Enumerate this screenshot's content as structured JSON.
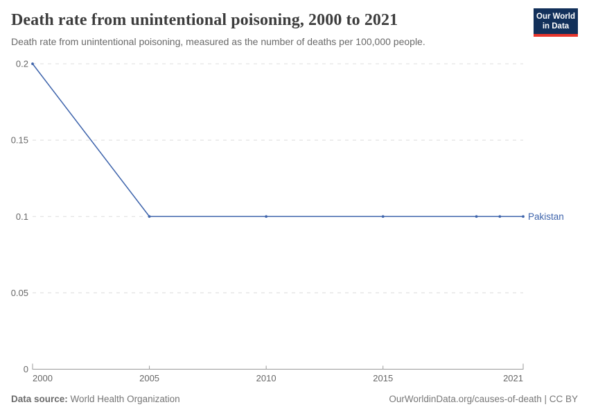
{
  "header": {
    "title": "Death rate from unintentional poisoning, 2000 to 2021",
    "subtitle": "Death rate from unintentional poisoning, measured as the number of deaths per 100,000 people."
  },
  "logo": {
    "line1": "Our World",
    "line2": "in Data",
    "bg_color": "#12305a",
    "accent_color": "#e8362c"
  },
  "chart_data": {
    "type": "line",
    "title": "Death rate from unintentional poisoning, 2000 to 2021",
    "xlabel": "",
    "ylabel": "",
    "xlim": [
      2000,
      2021
    ],
    "ylim": [
      0,
      0.2
    ],
    "xticks": [
      2000,
      2005,
      2010,
      2015,
      2021
    ],
    "yticks": [
      0,
      0.05,
      0.1,
      0.15,
      0.2
    ],
    "ytick_labels": [
      "0",
      "0.05",
      "0.1",
      "0.15",
      "0.2"
    ],
    "grid": true,
    "legend_position": "end-of-line",
    "series": [
      {
        "name": "Pakistan",
        "color": "#3d63ab",
        "x": [
          2000,
          2005,
          2010,
          2015,
          2019,
          2020,
          2021
        ],
        "values": [
          0.2,
          0.1,
          0.1,
          0.1,
          0.1,
          0.1,
          0.1
        ]
      }
    ],
    "style": {
      "gridline_color": "#dcdcdc",
      "axis_color": "#9a9a9a",
      "tick_label_color": "#666666"
    }
  },
  "footer": {
    "source_label": "Data source:",
    "source_value": " World Health Organization",
    "credit": "OurWorldinData.org/causes-of-death | CC BY"
  }
}
